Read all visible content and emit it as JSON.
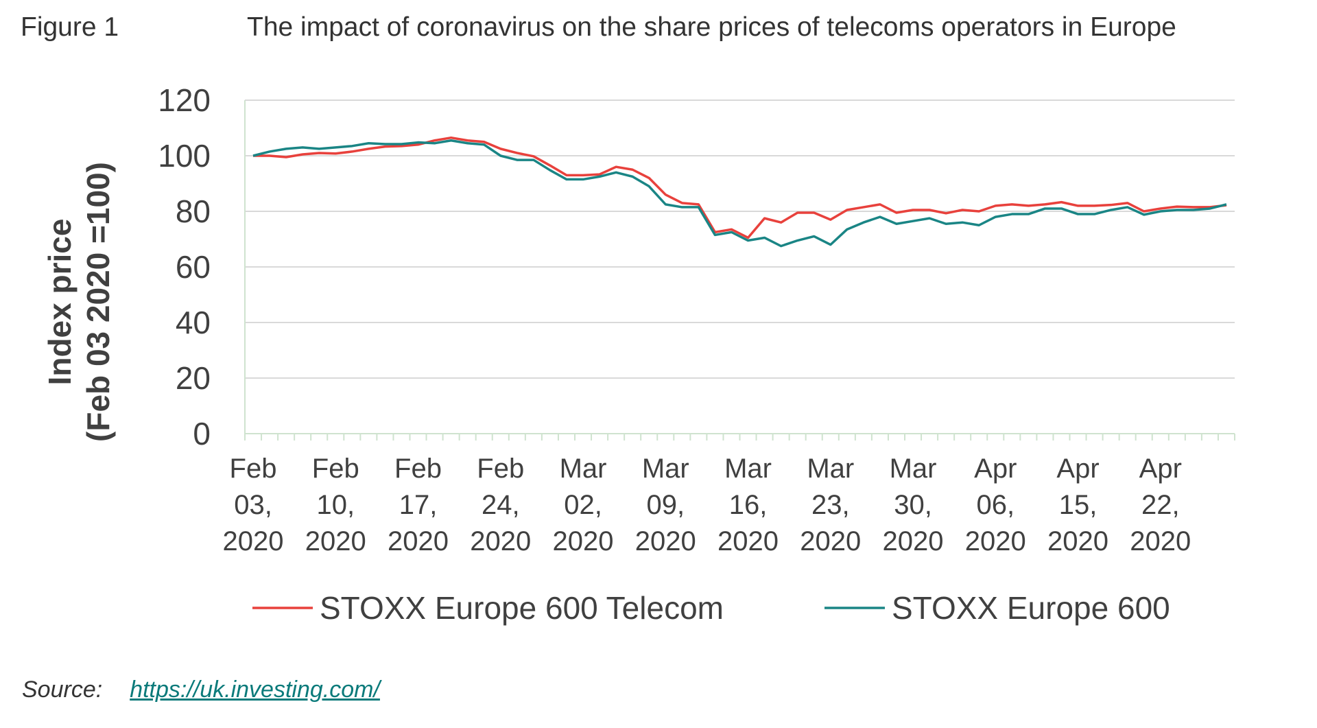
{
  "figure": {
    "label": "Figure 1",
    "title": "The impact of coronavirus on the share prices of telecoms operators in Europe"
  },
  "source": {
    "label": "Source:",
    "link_text": "https://uk.investing.com/"
  },
  "chart_data": {
    "type": "line",
    "ylabel": [
      "Index price",
      "(Feb 03 2020 =100)"
    ],
    "xlabel": "",
    "ylim": [
      0,
      120
    ],
    "yticks": [
      0,
      20,
      40,
      60,
      80,
      100,
      120
    ],
    "grid": true,
    "legend_position": "bottom",
    "x_tick_labels": [
      [
        "Feb",
        "03,",
        "2020"
      ],
      [
        "Feb",
        "10,",
        "2020"
      ],
      [
        "Feb",
        "17,",
        "2020"
      ],
      [
        "Feb",
        "24,",
        "2020"
      ],
      [
        "Mar",
        "02,",
        "2020"
      ],
      [
        "Mar",
        "09,",
        "2020"
      ],
      [
        "Mar",
        "16,",
        "2020"
      ],
      [
        "Mar",
        "23,",
        "2020"
      ],
      [
        "Mar",
        "30,",
        "2020"
      ],
      [
        "Apr",
        "06,",
        "2020"
      ],
      [
        "Apr",
        "15,",
        "2020"
      ],
      [
        "Apr",
        "22,",
        "2020"
      ]
    ],
    "label_every": 5,
    "series": [
      {
        "name": "STOXX Europe 600 Telecom",
        "color": "#e8413c",
        "values": [
          100,
          100,
          99.5,
          100.5,
          101,
          100.8,
          101.5,
          102.5,
          103.3,
          103.5,
          104,
          105.5,
          106.5,
          105.5,
          105,
          102.5,
          101,
          99.8,
          96.5,
          93,
          93,
          93.3,
          96,
          95,
          92,
          86,
          83,
          82.5,
          72.5,
          73.5,
          70.5,
          77.5,
          76,
          79.5,
          79.5,
          77,
          80.5,
          81.5,
          82.5,
          79.5,
          80.5,
          80.5,
          79.3,
          80.5,
          80,
          82,
          82.5,
          82,
          82.5,
          83.3,
          82,
          82,
          82.3,
          83,
          80,
          81,
          81.7,
          81.5,
          81.5,
          82.2
        ]
      },
      {
        "name": "STOXX Europe 600",
        "color": "#1a8585",
        "values": [
          100,
          101.5,
          102.5,
          103,
          102.5,
          103,
          103.5,
          104.5,
          104.2,
          104.2,
          104.8,
          104.5,
          105.5,
          104.5,
          104,
          100,
          98.5,
          98.5,
          94.8,
          91.5,
          91.5,
          92.5,
          94,
          92.5,
          89,
          82.5,
          81.5,
          81.5,
          71.5,
          72.5,
          69.5,
          70.5,
          67.5,
          69.5,
          71,
          68,
          73.5,
          76,
          78,
          75.5,
          76.5,
          77.5,
          75.5,
          76,
          75,
          78,
          79,
          79,
          81,
          81,
          79,
          79,
          80.5,
          81.5,
          78.8,
          80,
          80.5,
          80.5,
          81,
          82.5
        ]
      }
    ]
  }
}
